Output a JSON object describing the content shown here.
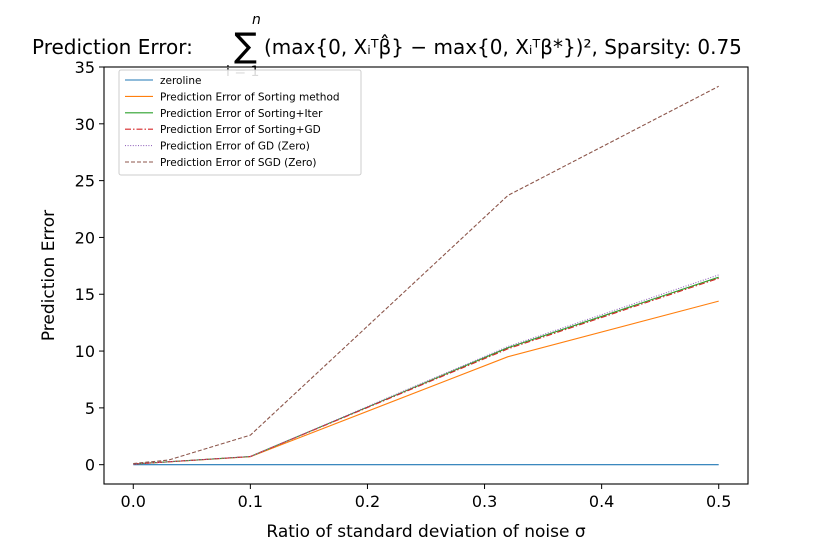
{
  "chart_data": {
    "type": "line",
    "title": "Prediction Error: ∑ᵢ₌₁ⁿ (max{0, Xᵢᵀβ̂} − max{0, Xᵢᵀβ*})², Sparsity: 0.75",
    "title_parts": {
      "prefix": "Prediction Error:",
      "sum_symbol": "∑",
      "sum_upper": "n",
      "sum_lower": "i = 1",
      "formula": "(max{0, Xᵢᵀβ̂} − max{0, Xᵢᵀβ*})², Sparsity: 0.75"
    },
    "xlabel": "Ratio of standard deviation of noise σ",
    "ylabel": "Prediction Error",
    "xlim": [
      -0.025,
      0.525
    ],
    "ylim": [
      -1.7,
      35
    ],
    "xticks": [
      0.0,
      0.1,
      0.2,
      0.3,
      0.4,
      0.5
    ],
    "xtick_labels": [
      "0.0",
      "0.1",
      "0.2",
      "0.3",
      "0.4",
      "0.5"
    ],
    "yticks": [
      0,
      5,
      10,
      15,
      20,
      25,
      30,
      35
    ],
    "ytick_labels": [
      "0",
      "5",
      "10",
      "15",
      "20",
      "25",
      "30",
      "35"
    ],
    "grid": false,
    "legend_position": "top-left",
    "series": [
      {
        "name": "zeroline",
        "color": "#1f77b4",
        "dash": "solid",
        "x": [
          0.0,
          0.1,
          0.32,
          0.5
        ],
        "y": [
          0,
          0,
          0,
          0
        ]
      },
      {
        "name": "Prediction Error of Sorting method",
        "color": "#ff7f0e",
        "dash": "solid",
        "x": [
          0.0,
          0.1,
          0.32,
          0.5
        ],
        "y": [
          0.05,
          0.7,
          9.5,
          14.4
        ]
      },
      {
        "name": "Prediction Error of Sorting+Iter",
        "color": "#2ca02c",
        "dash": "solid",
        "x": [
          0.0,
          0.1,
          0.32,
          0.5
        ],
        "y": [
          0.05,
          0.72,
          10.3,
          16.5
        ]
      },
      {
        "name": "Prediction Error of Sorting+GD",
        "color": "#d62728",
        "dash": "dashdot",
        "x": [
          0.0,
          0.1,
          0.32,
          0.5
        ],
        "y": [
          0.05,
          0.72,
          10.2,
          16.4
        ]
      },
      {
        "name": "Prediction Error of GD (Zero)",
        "color": "#9467bd",
        "dash": "dotted",
        "x": [
          0.0,
          0.1,
          0.32,
          0.5
        ],
        "y": [
          0.05,
          0.72,
          10.4,
          16.7
        ]
      },
      {
        "name": "Prediction Error of SGD (Zero)",
        "color": "#8c564b",
        "dash": "dashed",
        "x": [
          0.0,
          0.03,
          0.1,
          0.32,
          0.5
        ],
        "y": [
          0.1,
          0.4,
          2.6,
          23.7,
          33.3
        ]
      }
    ]
  }
}
